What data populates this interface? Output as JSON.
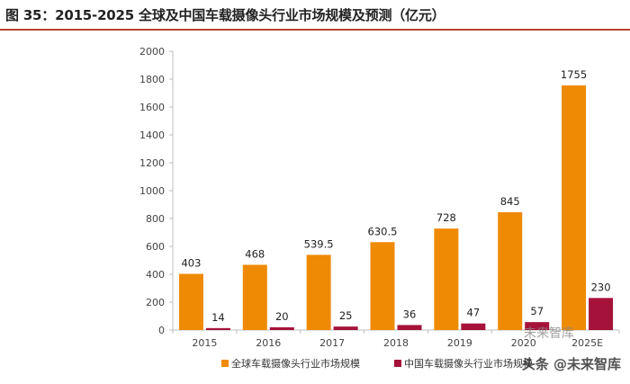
{
  "title": "图 35：2015-2025 全球及中国车载摄像头行业市场规模及预测（亿元）",
  "watermark": "头条 @未来智库",
  "watermark_faint": "未来智库",
  "colors": {
    "global": "#ef8a05",
    "china": "#a5123a",
    "axis": "#bfbfbf",
    "title_rule": "#b8462c"
  },
  "chart_data": {
    "type": "bar",
    "title": "图 35：2015-2025 全球及中国车载摄像头行业市场规模及预测（亿元）",
    "xlabel": "",
    "ylabel": "",
    "categories": [
      "2015",
      "2016",
      "2017",
      "2018",
      "2019",
      "2020",
      "2025E"
    ],
    "ylim": [
      0,
      2000
    ],
    "yticks": [
      0,
      200,
      400,
      600,
      800,
      1000,
      1200,
      1400,
      1600,
      1800,
      2000
    ],
    "grid": false,
    "legend": "bottom",
    "series": [
      {
        "name": "全球车载摄像头行业市场规模",
        "values": [
          403,
          468,
          539.5,
          630.5,
          728,
          845,
          1755
        ],
        "labels": [
          "403",
          "468",
          "539.5",
          "630.5",
          "728",
          "845",
          "1755"
        ],
        "color": "#ef8a05"
      },
      {
        "name": "中国车载摄像头行业市场规模",
        "values": [
          14,
          20,
          25,
          36,
          47,
          57,
          230
        ],
        "labels": [
          "14",
          "20",
          "25",
          "36",
          "47",
          "57",
          "230"
        ],
        "color": "#a5123a"
      }
    ]
  }
}
